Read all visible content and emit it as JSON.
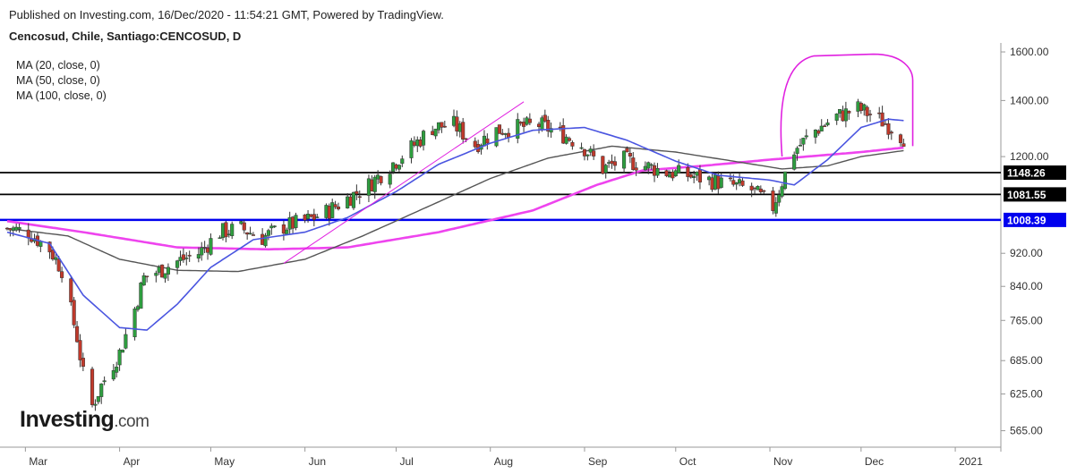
{
  "header": {
    "published": "Published on Investing.com, 16/Dec/2020 - 11:54:21 GMT, Powered by TradingView.",
    "symbol": "Cencosud, Chile, Santiago:CENCOSUD, D"
  },
  "indicators": [
    "MA (20, close, 0)",
    "MA (50, close, 0)",
    "MA (100, close, 0)"
  ],
  "logo": {
    "brand": "Investing",
    "suffix": ".com"
  },
  "colors": {
    "up": "#2e9e3f",
    "down": "#c0392b",
    "ma20": "#4a55e0",
    "ma50": "#555555",
    "ma100": "#ee44ee",
    "annotation": "#e020e0",
    "hline_black": "#000000",
    "hline_blue": "#0000ee"
  },
  "chart_data": {
    "type": "candlestick",
    "y_scale": "log",
    "ylim": [
      540,
      1640
    ],
    "y_ticks": [
      565,
      625,
      685,
      765,
      840,
      920,
      1200,
      1400,
      1600
    ],
    "y_tick_labels": [
      "565.00",
      "625.00",
      "685.00",
      "765.00",
      "840.00",
      "920.00",
      "1200.00",
      "1400.00",
      "1600.00"
    ],
    "x_range": [
      "2020-02-24",
      "2021-01-16"
    ],
    "x_ticks": [
      {
        "date": "2020-03-01",
        "label": "Mar"
      },
      {
        "date": "2020-04-01",
        "label": "Apr"
      },
      {
        "date": "2020-05-01",
        "label": "May"
      },
      {
        "date": "2020-06-01",
        "label": "Jun"
      },
      {
        "date": "2020-07-01",
        "label": "Jul"
      },
      {
        "date": "2020-08-01",
        "label": "Aug"
      },
      {
        "date": "2020-09-01",
        "label": "Sep"
      },
      {
        "date": "2020-10-01",
        "label": "Oct"
      },
      {
        "date": "2020-11-01",
        "label": "Nov"
      },
      {
        "date": "2020-12-01",
        "label": "Dec"
      },
      {
        "date": "2021-01-01",
        "label": "2021"
      }
    ],
    "horizontal_lines": [
      {
        "value": 1148.26,
        "label": "1148.26",
        "color": "#000000"
      },
      {
        "value": 1081.55,
        "label": "1081.55",
        "color": "#000000"
      },
      {
        "value": 1008.39,
        "label": "1008.39",
        "color": "#0000ee"
      }
    ],
    "close_anchors": [
      [
        "2020-02-24",
        985
      ],
      [
        "2020-03-02",
        975
      ],
      [
        "2020-03-09",
        930
      ],
      [
        "2020-03-13",
        880
      ],
      [
        "2020-03-18",
        730
      ],
      [
        "2020-03-20",
        660
      ],
      [
        "2020-03-23",
        605
      ],
      [
        "2020-03-26",
        640
      ],
      [
        "2020-04-01",
        700
      ],
      [
        "2020-04-06",
        790
      ],
      [
        "2020-04-09",
        860
      ],
      [
        "2020-04-15",
        880
      ],
      [
        "2020-04-20",
        900
      ],
      [
        "2020-04-27",
        920
      ],
      [
        "2020-05-04",
        975
      ],
      [
        "2020-05-11",
        985
      ],
      [
        "2020-05-18",
        960
      ],
      [
        "2020-05-25",
        990
      ],
      [
        "2020-06-01",
        1005
      ],
      [
        "2020-06-08",
        1030
      ],
      [
        "2020-06-15",
        1070
      ],
      [
        "2020-06-22",
        1110
      ],
      [
        "2020-06-29",
        1170
      ],
      [
        "2020-07-06",
        1230
      ],
      [
        "2020-07-13",
        1300
      ],
      [
        "2020-07-20",
        1310
      ],
      [
        "2020-07-27",
        1240
      ],
      [
        "2020-08-03",
        1290
      ],
      [
        "2020-08-10",
        1300
      ],
      [
        "2020-08-17",
        1310
      ],
      [
        "2020-08-24",
        1280
      ],
      [
        "2020-08-31",
        1240
      ],
      [
        "2020-09-07",
        1160
      ],
      [
        "2020-09-14",
        1190
      ],
      [
        "2020-09-21",
        1170
      ],
      [
        "2020-09-28",
        1150
      ],
      [
        "2020-10-05",
        1140
      ],
      [
        "2020-10-12",
        1125
      ],
      [
        "2020-10-19",
        1110
      ],
      [
        "2020-10-26",
        1095
      ],
      [
        "2020-11-02",
        1045
      ],
      [
        "2020-11-05",
        1120
      ],
      [
        "2020-11-09",
        1220
      ],
      [
        "2020-11-16",
        1290
      ],
      [
        "2020-11-23",
        1340
      ],
      [
        "2020-11-30",
        1370
      ],
      [
        "2020-12-07",
        1330
      ],
      [
        "2020-12-11",
        1300
      ],
      [
        "2020-12-15",
        1265
      ]
    ],
    "ma20_anchors": [
      [
        "2020-02-24",
        975
      ],
      [
        "2020-03-09",
        945
      ],
      [
        "2020-03-20",
        820
      ],
      [
        "2020-04-01",
        750
      ],
      [
        "2020-04-10",
        745
      ],
      [
        "2020-04-20",
        800
      ],
      [
        "2020-05-01",
        885
      ],
      [
        "2020-05-15",
        955
      ],
      [
        "2020-06-01",
        975
      ],
      [
        "2020-06-15",
        1015
      ],
      [
        "2020-07-01",
        1090
      ],
      [
        "2020-07-15",
        1175
      ],
      [
        "2020-08-01",
        1245
      ],
      [
        "2020-08-15",
        1290
      ],
      [
        "2020-09-01",
        1300
      ],
      [
        "2020-09-15",
        1255
      ],
      [
        "2020-10-01",
        1185
      ],
      [
        "2020-10-15",
        1140
      ],
      [
        "2020-11-01",
        1125
      ],
      [
        "2020-11-09",
        1110
      ],
      [
        "2020-11-20",
        1190
      ],
      [
        "2020-12-01",
        1300
      ],
      [
        "2020-12-10",
        1330
      ],
      [
        "2020-12-15",
        1325
      ]
    ],
    "ma50_anchors": [
      [
        "2020-02-24",
        985
      ],
      [
        "2020-03-15",
        965
      ],
      [
        "2020-04-01",
        905
      ],
      [
        "2020-04-20",
        878
      ],
      [
        "2020-05-10",
        875
      ],
      [
        "2020-06-01",
        905
      ],
      [
        "2020-06-20",
        965
      ],
      [
        "2020-07-10",
        1040
      ],
      [
        "2020-08-01",
        1130
      ],
      [
        "2020-08-20",
        1195
      ],
      [
        "2020-09-10",
        1235
      ],
      [
        "2020-10-01",
        1215
      ],
      [
        "2020-10-20",
        1185
      ],
      [
        "2020-11-05",
        1160
      ],
      [
        "2020-11-20",
        1170
      ],
      [
        "2020-12-01",
        1200
      ],
      [
        "2020-12-15",
        1220
      ]
    ],
    "ma100_anchors": [
      [
        "2020-02-24",
        1005
      ],
      [
        "2020-03-20",
        975
      ],
      [
        "2020-04-20",
        935
      ],
      [
        "2020-05-20",
        930
      ],
      [
        "2020-06-15",
        935
      ],
      [
        "2020-07-15",
        975
      ],
      [
        "2020-08-15",
        1035
      ],
      [
        "2020-09-05",
        1110
      ],
      [
        "2020-09-20",
        1155
      ],
      [
        "2020-10-10",
        1170
      ],
      [
        "2020-11-01",
        1190
      ],
      [
        "2020-12-01",
        1215
      ],
      [
        "2020-12-15",
        1230
      ]
    ],
    "trendline": [
      [
        "2020-05-25",
        895
      ],
      [
        "2020-08-12",
        1395
      ]
    ],
    "annotation_arc": [
      [
        "2020-11-05",
        1200
      ],
      [
        "2020-11-08",
        1560
      ],
      [
        "2020-12-05",
        1590
      ],
      [
        "2020-12-18",
        1480
      ],
      [
        "2020-12-18",
        1235
      ]
    ]
  }
}
